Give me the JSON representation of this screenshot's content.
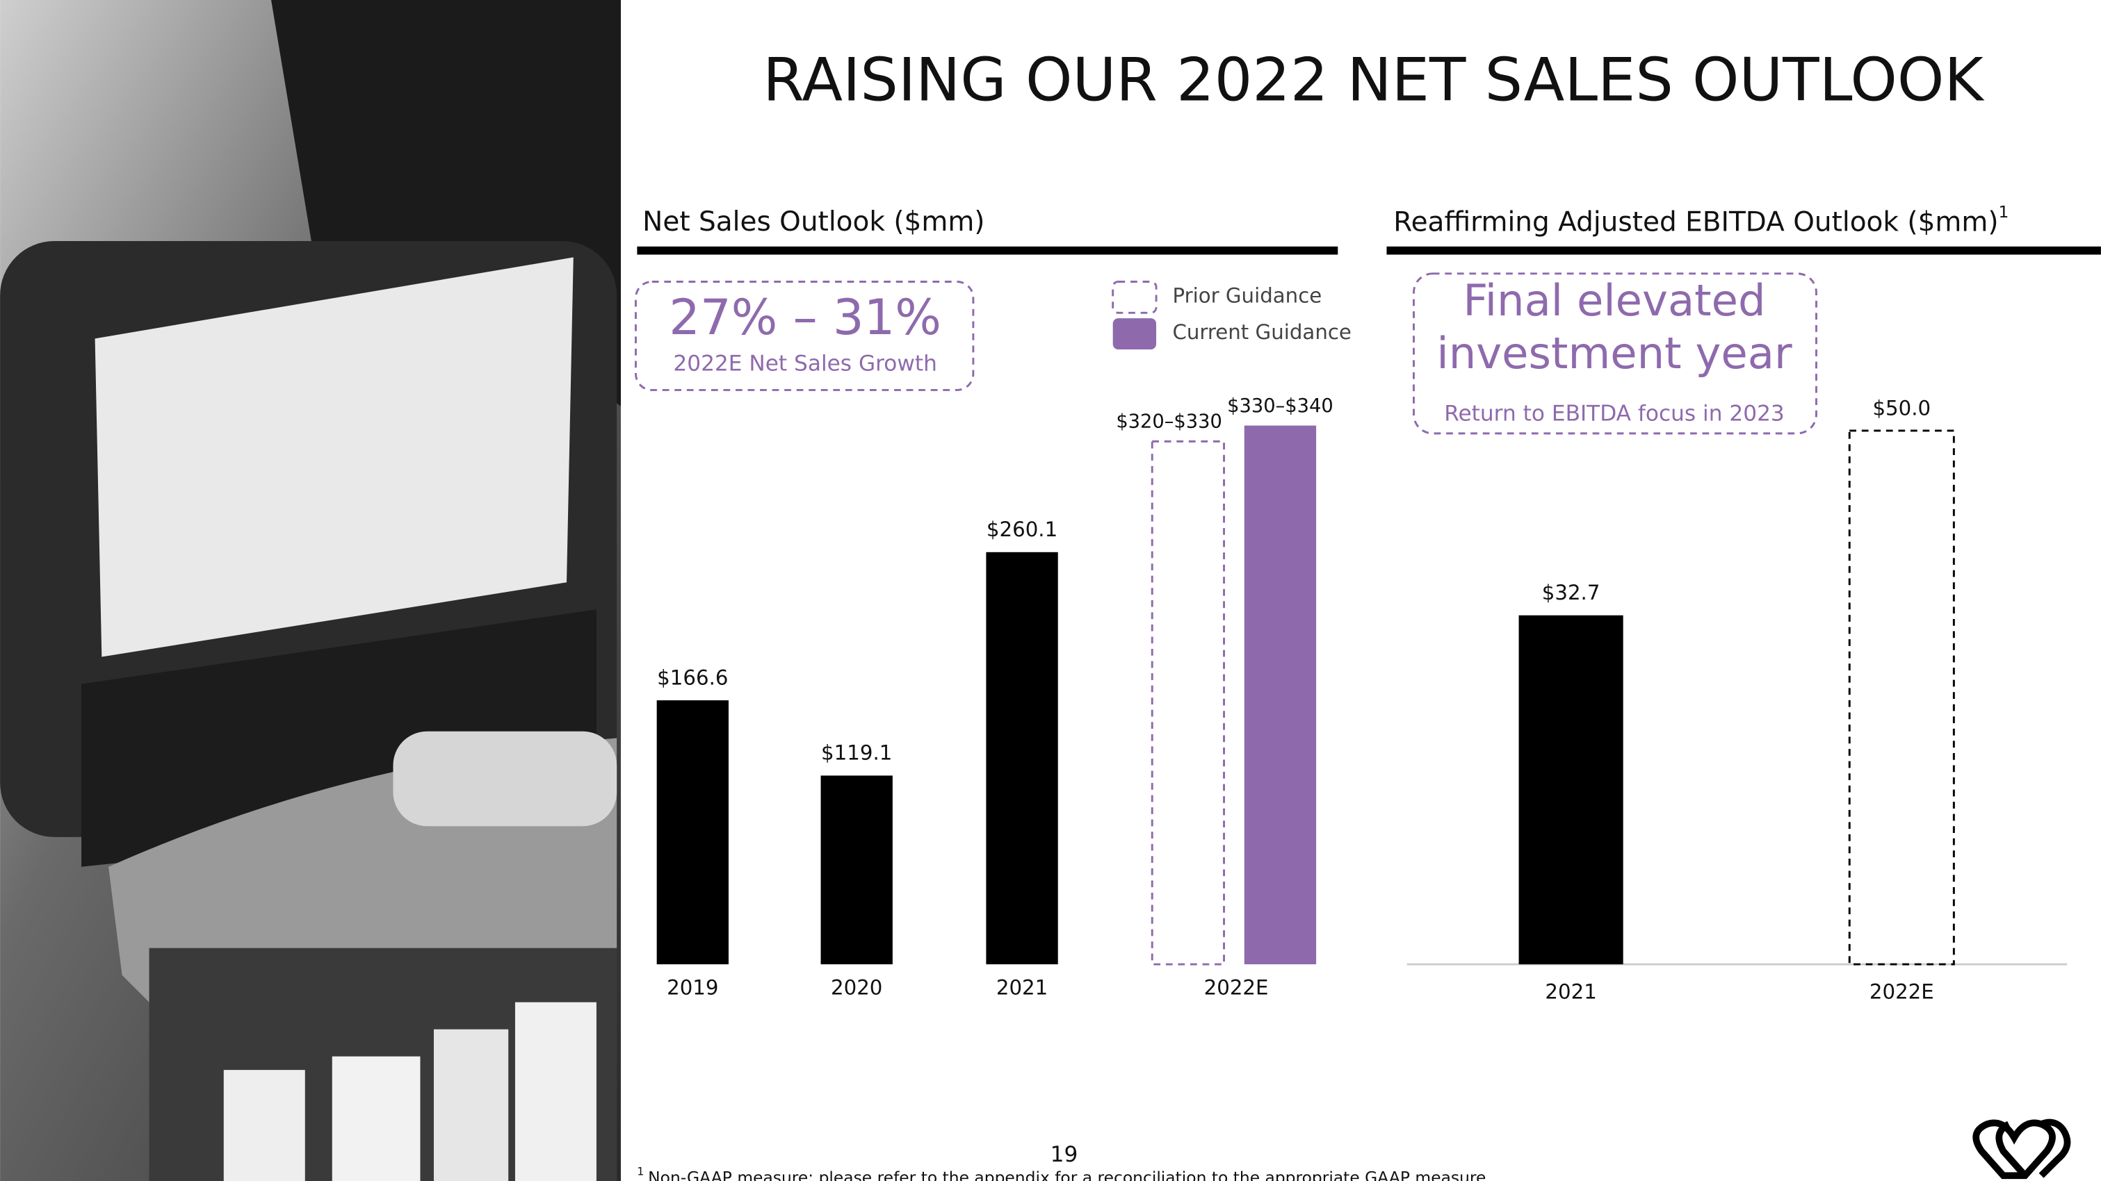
{
  "title": "RAISING OUR 2022 NET SALES OUTLOOK",
  "chart_data": [
    {
      "type": "bar",
      "title": "Net Sales Outlook ($mm)",
      "categories": [
        "2019",
        "2020",
        "2021",
        "2022E"
      ],
      "values": [
        166.6,
        119.1,
        260.1,
        null
      ],
      "value_labels": [
        "$166.6",
        "$119.1",
        "$260.1",
        null
      ],
      "color": "#000000",
      "guidance": [
        {
          "name": "Prior Guidance",
          "low": 320,
          "high": 330,
          "label": "$320–$330",
          "color": "#8e6aad",
          "style": "dashed"
        },
        {
          "name": "Current Guidance",
          "low": 330,
          "high": 340,
          "label": "$330–$340",
          "color": "#8e6aad",
          "style": "solid"
        }
      ],
      "annotation": {
        "headline": "27% – 31%",
        "text": "2022E Net Sales Growth"
      }
    },
    {
      "type": "bar",
      "title": "Reaffirming Adjusted EBITDA Outlook ($mm)",
      "title_note": "1",
      "categories": [
        "2021",
        "2022E"
      ],
      "values": [
        32.7,
        50.0
      ],
      "value_labels": [
        "$32.7",
        "$50.0"
      ],
      "color": "#000000",
      "bar_styles": [
        "solid",
        "dashed"
      ],
      "annotation": {
        "headline": [
          "Final elevated",
          "investment year"
        ],
        "text": "Return to EBITDA focus in 2023"
      }
    }
  ],
  "page_number": "19",
  "footnote": {
    "marker": "1",
    "text": "Non-GAAP measure; please refer to the appendix for a reconciliation to the appropriate GAAP measure"
  }
}
